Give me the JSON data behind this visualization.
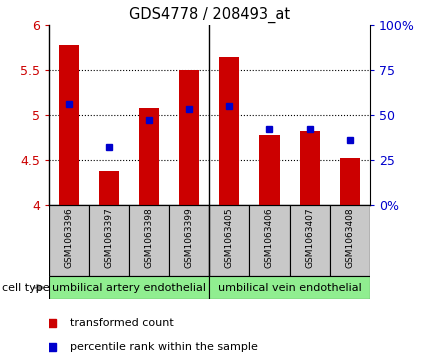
{
  "title": "GDS4778 / 208493_at",
  "samples": [
    "GSM1063396",
    "GSM1063397",
    "GSM1063398",
    "GSM1063399",
    "GSM1063405",
    "GSM1063406",
    "GSM1063407",
    "GSM1063408"
  ],
  "red_values": [
    5.78,
    4.38,
    5.08,
    5.5,
    5.65,
    4.78,
    4.82,
    4.52
  ],
  "blue_values": [
    5.13,
    4.65,
    4.95,
    5.07,
    5.1,
    4.85,
    4.85,
    4.73
  ],
  "ylim_left": [
    4.0,
    6.0
  ],
  "ylim_right": [
    0,
    100
  ],
  "yticks_left": [
    4.0,
    4.5,
    5.0,
    5.5,
    6.0
  ],
  "ytick_labels_left": [
    "4",
    "4.5",
    "5",
    "5.5",
    "6"
  ],
  "yticks_right": [
    0,
    25,
    50,
    75,
    100
  ],
  "ytick_labels_right": [
    "0%",
    "25",
    "50",
    "75",
    "100%"
  ],
  "group_labels": [
    "umbilical artery endothelial",
    "umbilical vein endothelial"
  ],
  "group_ranges": [
    [
      0,
      3
    ],
    [
      4,
      7
    ]
  ],
  "group_color": "#90ee90",
  "cell_type_label": "cell type",
  "legend_red_label": "transformed count",
  "legend_blue_label": "percentile rank within the sample",
  "bar_color": "#cc0000",
  "dot_color": "#0000cc",
  "bar_bottom": 4.0,
  "tick_label_color_left": "#cc0000",
  "tick_label_color_right": "#0000cc",
  "sample_bg_color": "#c8c8c8",
  "grid_lines": [
    4.5,
    5.0,
    5.5
  ]
}
